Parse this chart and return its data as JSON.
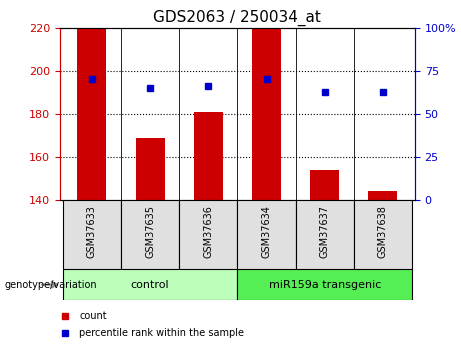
{
  "title": "GDS2063 / 250034_at",
  "samples": [
    "GSM37633",
    "GSM37635",
    "GSM37636",
    "GSM37634",
    "GSM37637",
    "GSM37638"
  ],
  "bar_values": [
    220,
    169,
    181,
    220,
    154,
    144
  ],
  "bar_bottom": 140,
  "percentile_values": [
    196,
    192,
    193,
    196,
    190,
    190
  ],
  "ylim_left": [
    140,
    220
  ],
  "ylim_right": [
    0,
    100
  ],
  "yticks_left": [
    140,
    160,
    180,
    200,
    220
  ],
  "yticks_right": [
    0,
    25,
    50,
    75,
    100
  ],
  "ytick_labels_right": [
    "0",
    "25",
    "50",
    "75",
    "100%"
  ],
  "bar_color": "#cc0000",
  "point_color": "#0000cc",
  "groups": [
    {
      "label": "control",
      "indices": [
        0,
        1,
        2
      ],
      "color": "#bbffbb"
    },
    {
      "label": "miR159a transgenic",
      "indices": [
        3,
        4,
        5
      ],
      "color": "#55ee55"
    }
  ],
  "genotype_label": "genotype/variation",
  "legend_count": "count",
  "legend_percentile": "percentile rank within the sample",
  "left_tick_color": "#cc0000",
  "right_tick_color": "#0000cc",
  "title_fontsize": 11,
  "tick_fontsize": 8,
  "label_fontsize": 8,
  "bar_width": 0.5
}
